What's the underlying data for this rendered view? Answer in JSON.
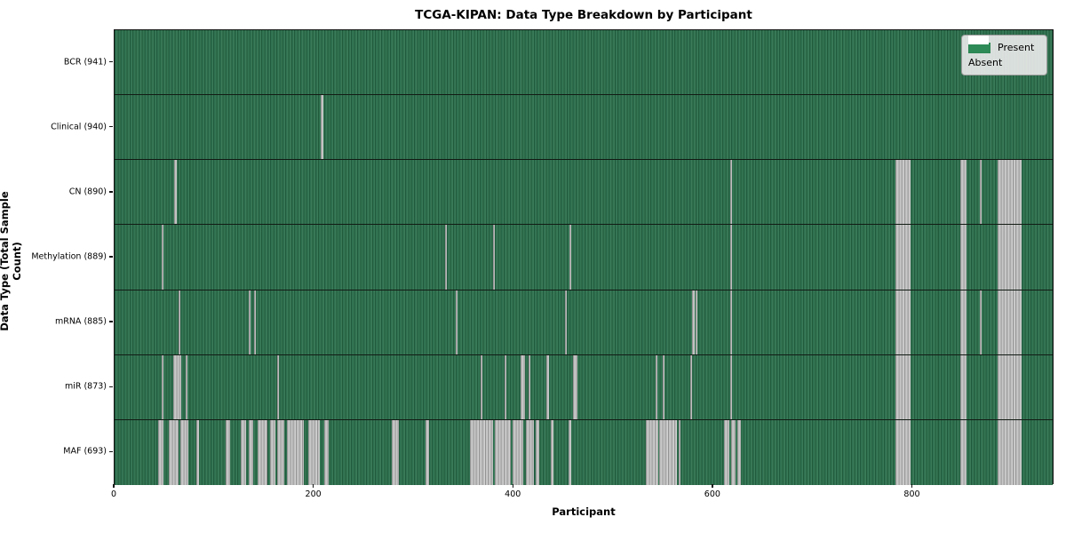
{
  "chart_data": {
    "type": "heatmap",
    "title": "TCGA-KIPAN: Data Type Breakdown by Participant",
    "xlabel": "Participant",
    "ylabel": "Data Type (Total Sample Count)",
    "x_max": 942,
    "x_ticks": [
      0,
      200,
      400,
      600,
      800
    ],
    "grid": false,
    "legend_position": "upper right",
    "legend": [
      {
        "label": "Present",
        "color": "#2e8b57"
      },
      {
        "label": "Absent",
        "color": "#ffffff"
      }
    ],
    "cell_states": {
      "present": 1,
      "absent": 0
    },
    "rows": [
      {
        "label": "BCR (941)",
        "data_type": "BCR",
        "total_sample_count": 941,
        "absent_ranges": []
      },
      {
        "label": "Clinical (940)",
        "data_type": "Clinical",
        "total_sample_count": 940,
        "absent_ranges": [
          [
            207,
            208
          ]
        ]
      },
      {
        "label": "CN (890)",
        "data_type": "CN",
        "total_sample_count": 890,
        "absent_ranges": [
          [
            60,
            61
          ],
          [
            617,
            618
          ],
          [
            783,
            797
          ],
          [
            848,
            853
          ],
          [
            867,
            868
          ],
          [
            885,
            908
          ]
        ]
      },
      {
        "label": "Methylation (889)",
        "data_type": "Methylation",
        "total_sample_count": 889,
        "absent_ranges": [
          [
            47,
            48
          ],
          [
            331,
            332
          ],
          [
            379,
            380
          ],
          [
            456,
            457
          ],
          [
            617,
            618
          ],
          [
            783,
            797
          ],
          [
            848,
            853
          ],
          [
            885,
            908
          ]
        ]
      },
      {
        "label": "mRNA (885)",
        "data_type": "mRNA",
        "total_sample_count": 885,
        "absent_ranges": [
          [
            64,
            65
          ],
          [
            134,
            135
          ],
          [
            140,
            141
          ],
          [
            342,
            343
          ],
          [
            451,
            452
          ],
          [
            579,
            580
          ],
          [
            582,
            583
          ],
          [
            617,
            618
          ],
          [
            783,
            797
          ],
          [
            848,
            853
          ],
          [
            867,
            868
          ],
          [
            885,
            908
          ]
        ]
      },
      {
        "label": "miR (873)",
        "data_type": "miR",
        "total_sample_count": 873,
        "absent_ranges": [
          [
            47,
            48
          ],
          [
            59,
            66
          ],
          [
            71,
            72
          ],
          [
            163,
            164
          ],
          [
            367,
            368
          ],
          [
            391,
            392
          ],
          [
            407,
            410
          ],
          [
            415,
            416
          ],
          [
            433,
            434
          ],
          [
            459,
            463
          ],
          [
            542,
            543
          ],
          [
            549,
            550
          ],
          [
            577,
            578
          ],
          [
            617,
            618
          ],
          [
            783,
            797
          ],
          [
            848,
            853
          ],
          [
            885,
            908
          ]
        ]
      },
      {
        "label": "MAF (693)",
        "data_type": "MAF",
        "total_sample_count": 693,
        "absent_ranges": [
          [
            44,
            48
          ],
          [
            54,
            63
          ],
          [
            66,
            73
          ],
          [
            82,
            84
          ],
          [
            111,
            115
          ],
          [
            126,
            131
          ],
          [
            134,
            138
          ],
          [
            143,
            152
          ],
          [
            156,
            160
          ],
          [
            163,
            169
          ],
          [
            173,
            189
          ],
          [
            194,
            205
          ],
          [
            210,
            214
          ],
          [
            278,
            284
          ],
          [
            312,
            314
          ],
          [
            356,
            378
          ],
          [
            381,
            396
          ],
          [
            399,
            409
          ],
          [
            412,
            419
          ],
          [
            422,
            425
          ],
          [
            437,
            439
          ],
          [
            455,
            457
          ],
          [
            532,
            544
          ],
          [
            546,
            563
          ],
          [
            565,
            566
          ],
          [
            611,
            615
          ],
          [
            618,
            621
          ],
          [
            624,
            627
          ],
          [
            783,
            797
          ],
          [
            848,
            853
          ],
          [
            885,
            908
          ]
        ]
      }
    ],
    "colors": {
      "present_green": "#2e8b57",
      "present_texture_dark": "#215b3d",
      "present_texture_light": "#3b7b59",
      "absent_gray": "#c0c0c0",
      "absent_white": "#ffffff",
      "row_separator": "#121b14",
      "spine": "#141414",
      "legend_background": "#e8e8e8"
    }
  }
}
